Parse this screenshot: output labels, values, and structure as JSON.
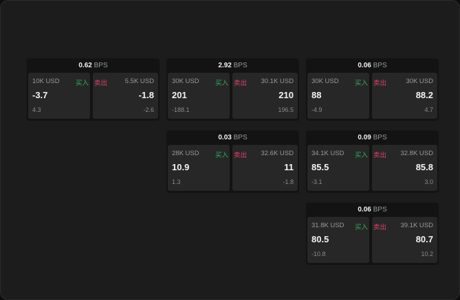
{
  "labels": {
    "unit": "BPS",
    "buy": "买入",
    "sell": "卖出"
  },
  "colors": {
    "buy": "#2fae62",
    "sell": "#e0406a"
  },
  "cards": [
    {
      "spread": "0.62",
      "bid_size": "10K USD",
      "bid": "-3.7",
      "bid_change": "4.3",
      "ask_size": "5.5K USD",
      "ask": "-1.8",
      "ask_change": "-2.6"
    },
    {
      "spread": "2.92",
      "bid_size": "30K USD",
      "bid": "201",
      "bid_change": "-188.1",
      "ask_size": "30.1K USD",
      "ask": "210",
      "ask_change": "196.5"
    },
    {
      "spread": "0.06",
      "bid_size": "30K USD",
      "bid": "88",
      "bid_change": "-4.9",
      "ask_size": "30K USD",
      "ask": "88.2",
      "ask_change": "4.7"
    },
    {
      "spread": "0.03",
      "bid_size": "28K USD",
      "bid": "10.9",
      "bid_change": "1.3",
      "ask_size": "32.6K USD",
      "ask": "11",
      "ask_change": "-1.8"
    },
    {
      "spread": "0.09",
      "bid_size": "34.1K USD",
      "bid": "85.5",
      "bid_change": "-3.1",
      "ask_size": "32.8K USD",
      "ask": "85.8",
      "ask_change": "3.0"
    },
    {
      "spread": "0.06",
      "bid_size": "31.8K USD",
      "bid": "80.5",
      "bid_change": "-10.8",
      "ask_size": "39.1K USD",
      "ask": "80.7",
      "ask_change": "10.2"
    }
  ]
}
